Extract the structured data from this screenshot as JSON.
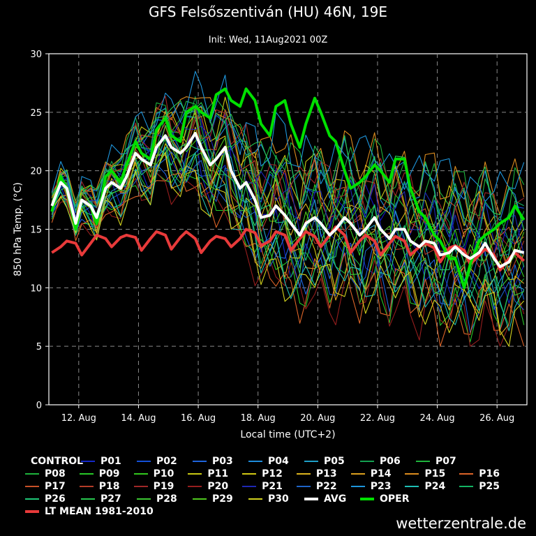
{
  "chart_data": {
    "type": "line",
    "title": "GFS Felsőszentiván (HU) 46N, 19E",
    "subtitle": "Init: Wed, 11Aug2021 00Z",
    "xlabel": "Local time (UTC+2)",
    "ylabel": "850 hPa Temp. (°C)",
    "ylim": [
      0,
      30
    ],
    "yticks": [
      0,
      5,
      10,
      15,
      20,
      25,
      30
    ],
    "xlim": [
      0,
      16
    ],
    "xticks": [
      1,
      3,
      5,
      7,
      9,
      11,
      13,
      15
    ],
    "xticklabels": [
      "12. Aug",
      "14. Aug",
      "16. Aug",
      "18. Aug",
      "20. Aug",
      "22. Aug",
      "24. Aug",
      "26. Aug"
    ],
    "grid": true,
    "legend_position": "bottom",
    "avg": {
      "name": "AVG",
      "color": "#ffffff",
      "x": [
        0.1,
        0.4,
        0.6,
        0.9,
        1.1,
        1.4,
        1.6,
        1.9,
        2.1,
        2.4,
        2.6,
        2.9,
        3.1,
        3.4,
        3.6,
        3.9,
        4.1,
        4.4,
        4.6,
        4.9,
        5.1,
        5.4,
        5.6,
        5.9,
        6.1,
        6.4,
        6.6,
        6.9,
        7.1,
        7.4,
        7.6,
        7.9,
        8.1,
        8.4,
        8.6,
        8.9,
        9.1,
        9.4,
        9.6,
        9.9,
        10.1,
        10.4,
        10.6,
        10.9,
        11.1,
        11.4,
        11.6,
        11.9,
        12.1,
        12.4,
        12.6,
        12.9,
        13.1,
        13.4,
        13.6,
        13.9,
        14.1,
        14.4,
        14.6,
        14.9,
        15.1,
        15.4,
        15.6,
        15.9
      ],
      "y": [
        17,
        19,
        18.5,
        15.5,
        17.5,
        17,
        16,
        18.5,
        19,
        18.5,
        19.5,
        21.5,
        21,
        20.5,
        22,
        23,
        22,
        21.5,
        22,
        23.2,
        22,
        20.5,
        21,
        22,
        20,
        18.5,
        19,
        17.5,
        16,
        16.2,
        17,
        16.2,
        15.5,
        14.5,
        15.5,
        16,
        15.5,
        14.5,
        15,
        16,
        15.5,
        14.5,
        15,
        16,
        15,
        14.2,
        15,
        15,
        14,
        13.5,
        14,
        13.8,
        12.8,
        13,
        13.5,
        12.8,
        12.5,
        13,
        13.8,
        12.5,
        11.8,
        12.2,
        13.2,
        13
      ]
    },
    "oper": {
      "name": "OPER",
      "color": "#00e000",
      "x": [
        0.1,
        0.4,
        0.6,
        0.9,
        1.1,
        1.4,
        1.6,
        1.9,
        2.1,
        2.4,
        2.6,
        2.9,
        3.1,
        3.4,
        3.6,
        3.9,
        4.1,
        4.4,
        4.6,
        4.9,
        5.1,
        5.4,
        5.6,
        5.9,
        6.1,
        6.4,
        6.6,
        6.9,
        7.1,
        7.4,
        7.6,
        7.9,
        8.1,
        8.4,
        8.6,
        8.9,
        9.1,
        9.4,
        9.6,
        9.9,
        10.1,
        10.4,
        10.6,
        10.9,
        11.1,
        11.4,
        11.6,
        11.9,
        12.1,
        12.4,
        12.6,
        12.9,
        13.1,
        13.4,
        13.6,
        13.9,
        14.1,
        14.4,
        14.6,
        14.9,
        15.1,
        15.4,
        15.6,
        15.9
      ],
      "y": [
        16.5,
        19.5,
        18.5,
        15,
        17.5,
        17,
        15.5,
        19.5,
        20,
        19,
        20.5,
        22.5,
        21.5,
        21,
        23.5,
        24.5,
        23,
        22.5,
        25,
        25.5,
        25,
        24.5,
        26.5,
        27,
        26,
        25.5,
        27,
        26,
        24,
        23,
        25.5,
        26,
        24,
        22,
        24,
        26.2,
        25,
        23,
        22.5,
        20,
        18.5,
        19,
        19.5,
        20.5,
        20,
        19,
        21,
        21,
        18.5,
        16.5,
        16,
        14.5,
        14,
        12.5,
        12.5,
        10,
        12,
        14,
        14.5,
        15,
        15.5,
        16,
        17,
        15.8
      ]
    },
    "lt_mean": {
      "name": "LT MEAN 1981-2010",
      "color": "#e83a3a",
      "x": [
        0.1,
        0.4,
        0.6,
        0.9,
        1.1,
        1.4,
        1.6,
        1.9,
        2.1,
        2.4,
        2.6,
        2.9,
        3.1,
        3.4,
        3.6,
        3.9,
        4.1,
        4.4,
        4.6,
        4.9,
        5.1,
        5.4,
        5.6,
        5.9,
        6.1,
        6.4,
        6.6,
        6.9,
        7.1,
        7.4,
        7.6,
        7.9,
        8.1,
        8.4,
        8.6,
        8.9,
        9.1,
        9.4,
        9.6,
        9.9,
        10.1,
        10.4,
        10.6,
        10.9,
        11.1,
        11.4,
        11.6,
        11.9,
        12.1,
        12.4,
        12.6,
        12.9,
        13.1,
        13.4,
        13.6,
        13.9,
        14.1,
        14.4,
        14.6,
        14.9,
        15.1,
        15.4,
        15.6,
        15.9
      ],
      "y": [
        13,
        13.5,
        14,
        13.8,
        12.8,
        13.8,
        14.5,
        14.2,
        13.5,
        14.3,
        14.5,
        14.3,
        13.2,
        14.2,
        14.8,
        14.5,
        13.3,
        14.3,
        14.8,
        14.2,
        13,
        14,
        14.4,
        14.2,
        13.5,
        14.2,
        15,
        14.7,
        13.6,
        14,
        14.8,
        14.5,
        13.2,
        14.2,
        14.8,
        14.4,
        13.5,
        14.5,
        15.2,
        14.5,
        13,
        14,
        14.5,
        14,
        12.8,
        13.8,
        14.4,
        14,
        12.8,
        13.5,
        13.8,
        13.4,
        12.2,
        13.4,
        13.6,
        13.2,
        12,
        12.8,
        13.3,
        12.8,
        11.5,
        12.5,
        13,
        12.3
      ]
    },
    "members": [
      {
        "name": "CONTROL",
        "color": "#1414c8",
        "offset": 0.8,
        "phase": 0.0
      },
      {
        "name": "P01",
        "color": "#1428c8",
        "offset": -1.2,
        "phase": 1.1
      },
      {
        "name": "P02",
        "color": "#1450d8",
        "offset": 1.5,
        "phase": 2.3
      },
      {
        "name": "P03",
        "color": "#1e64dc",
        "offset": -2.0,
        "phase": 3.4
      },
      {
        "name": "P04",
        "color": "#1e8cdc",
        "offset": 2.2,
        "phase": 4.2
      },
      {
        "name": "P05",
        "color": "#1ea0c8",
        "offset": -0.6,
        "phase": 5.1
      },
      {
        "name": "P06",
        "color": "#14a050",
        "offset": 1.0,
        "phase": 0.6
      },
      {
        "name": "P07",
        "color": "#1eb43c",
        "offset": -1.6,
        "phase": 1.7
      },
      {
        "name": "P08",
        "color": "#1eb43c",
        "offset": 2.6,
        "phase": 2.8
      },
      {
        "name": "P09",
        "color": "#28c828",
        "offset": -2.4,
        "phase": 3.9
      },
      {
        "name": "P10",
        "color": "#32c81e",
        "offset": 0.3,
        "phase": 4.7
      },
      {
        "name": "P11",
        "color": "#c8c814",
        "offset": 1.8,
        "phase": 5.6
      },
      {
        "name": "P12",
        "color": "#d2c814",
        "offset": -0.9,
        "phase": 0.3
      },
      {
        "name": "P13",
        "color": "#dcb41e",
        "offset": 0.6,
        "phase": 1.4
      },
      {
        "name": "P14",
        "color": "#dca01e",
        "offset": -1.9,
        "phase": 2.5
      },
      {
        "name": "P15",
        "color": "#dc8c1e",
        "offset": 2.9,
        "phase": 3.6
      },
      {
        "name": "P16",
        "color": "#dc6428",
        "offset": -2.8,
        "phase": 4.5
      },
      {
        "name": "P17",
        "color": "#c85028",
        "offset": 1.3,
        "phase": 5.4
      },
      {
        "name": "P18",
        "color": "#b43c28",
        "offset": -0.2,
        "phase": 0.9
      },
      {
        "name": "P19",
        "color": "#a02828",
        "offset": 2.0,
        "phase": 2.0
      },
      {
        "name": "P20",
        "color": "#961e1e",
        "offset": -3.0,
        "phase": 3.1
      },
      {
        "name": "P21",
        "color": "#1e28b4",
        "offset": 0.9,
        "phase": 4.0
      },
      {
        "name": "P22",
        "color": "#1e64c8",
        "offset": -1.4,
        "phase": 5.0
      },
      {
        "name": "P23",
        "color": "#1e96dc",
        "offset": 3.2,
        "phase": 0.2
      },
      {
        "name": "P24",
        "color": "#1ebeb4",
        "offset": -2.2,
        "phase": 1.3
      },
      {
        "name": "P25",
        "color": "#14b464",
        "offset": 1.6,
        "phase": 2.4
      },
      {
        "name": "P26",
        "color": "#1ec878",
        "offset": -0.4,
        "phase": 3.5
      },
      {
        "name": "P27",
        "color": "#28c850",
        "offset": 2.4,
        "phase": 4.4
      },
      {
        "name": "P28",
        "color": "#3cc832",
        "offset": -1.0,
        "phase": 5.3
      },
      {
        "name": "P29",
        "color": "#50c81e",
        "offset": 0.1,
        "phase": 0.7
      },
      {
        "name": "P30",
        "color": "#d2d21e",
        "offset": -2.6,
        "phase": 1.8
      }
    ]
  },
  "legend": [
    [
      {
        "label": "CONTROL",
        "color": "#1414c8"
      },
      {
        "label": "P01",
        "color": "#1428c8"
      },
      {
        "label": "P02",
        "color": "#1450d8"
      },
      {
        "label": "P03",
        "color": "#1e64dc"
      },
      {
        "label": "P04",
        "color": "#1e8cdc"
      },
      {
        "label": "P05",
        "color": "#1ea0c8"
      },
      {
        "label": "P06",
        "color": "#14a050"
      },
      {
        "label": "P07",
        "color": "#1eb43c"
      }
    ],
    [
      {
        "label": "P08",
        "color": "#1eb43c"
      },
      {
        "label": "P09",
        "color": "#28c828"
      },
      {
        "label": "P10",
        "color": "#32c81e"
      },
      {
        "label": "P11",
        "color": "#c8c814"
      },
      {
        "label": "P12",
        "color": "#d2c814"
      },
      {
        "label": "P13",
        "color": "#dcb41e"
      },
      {
        "label": "P14",
        "color": "#dca01e"
      },
      {
        "label": "P15",
        "color": "#dc8c1e"
      },
      {
        "label": "P16",
        "color": "#dc6428"
      }
    ],
    [
      {
        "label": "P17",
        "color": "#c85028"
      },
      {
        "label": "P18",
        "color": "#b43c28"
      },
      {
        "label": "P19",
        "color": "#a02828"
      },
      {
        "label": "P20",
        "color": "#961e1e"
      },
      {
        "label": "P21",
        "color": "#1e28b4"
      },
      {
        "label": "P22",
        "color": "#1e64c8"
      },
      {
        "label": "P23",
        "color": "#1e96dc"
      },
      {
        "label": "P24",
        "color": "#1ebeb4"
      },
      {
        "label": "P25",
        "color": "#14b464"
      }
    ],
    [
      {
        "label": "P26",
        "color": "#1ec878"
      },
      {
        "label": "P27",
        "color": "#28c850"
      },
      {
        "label": "P28",
        "color": "#3cc832"
      },
      {
        "label": "P29",
        "color": "#50c81e"
      },
      {
        "label": "P30",
        "color": "#d2d21e"
      },
      {
        "label": "AVG",
        "color": "#ffffff",
        "thick": true
      },
      {
        "label": "OPER",
        "color": "#00e000",
        "thick": true
      }
    ],
    [
      {
        "label": "LT MEAN 1981-2010",
        "color": "#e83a3a",
        "thick": true
      }
    ]
  ],
  "footer": {
    "brand": "wetterzentrale.de"
  }
}
